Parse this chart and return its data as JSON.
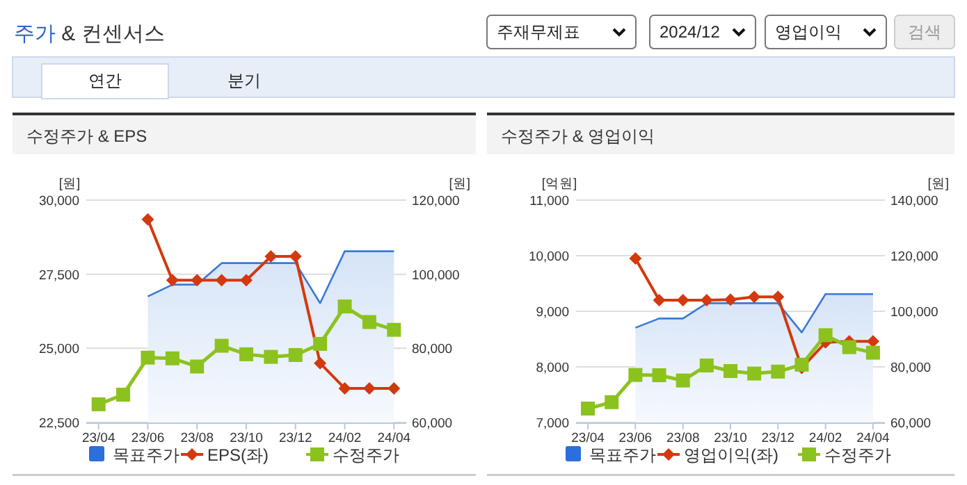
{
  "chart_data": [
    {
      "type": "other",
      "title": "주가 & 컨센서스",
      "annotations": [
        "주재무제표",
        "2024/12",
        "영업이익",
        "검색",
        "연간",
        "분기"
      ]
    },
    {
      "type": "line",
      "title": "수정주가 & EPS",
      "ylabel": "[원]",
      "y2label": "[원]",
      "categories": [
        "23/04",
        null,
        "23/06",
        null,
        "23/08",
        null,
        "23/10",
        null,
        "23/12",
        null,
        "24/02",
        null,
        "24/04"
      ],
      "ylim": [
        22500,
        30000
      ],
      "yticks": [
        {
          "value": 22500,
          "label": "22,500"
        },
        {
          "value": 25000,
          "label": "25,000"
        },
        {
          "value": 27500,
          "label": "27,500"
        },
        {
          "value": 30000,
          "label": "30,000"
        }
      ],
      "y2lim": [
        60000,
        120000
      ],
      "y2ticks": [
        {
          "value": 60000,
          "label": "60,000"
        },
        {
          "value": 80000,
          "label": "80,000"
        },
        {
          "value": 100000,
          "label": "100,000"
        },
        {
          "value": 120000,
          "label": "120,000"
        }
      ],
      "grid": "y",
      "legend": "bottom",
      "series": [
        {
          "name": "목표주가",
          "type": "area",
          "axis": "y2",
          "color": "#3a78d8",
          "values": [
            null,
            null,
            94000,
            97200,
            97200,
            103000,
            103000,
            103000,
            103000,
            92200,
            106200,
            106200,
            106200
          ]
        },
        {
          "name": "EPS(좌)",
          "color": "#d4380d",
          "marker": "diamond",
          "values": [
            null,
            null,
            29350,
            27300,
            27300,
            27300,
            27300,
            28100,
            28100,
            24500,
            23650,
            23650,
            23650
          ]
        },
        {
          "name": "수정주가",
          "axis": "y2",
          "color": "#8cc21e",
          "marker": "square",
          "values": [
            64900,
            67500,
            77500,
            77300,
            75100,
            80700,
            78400,
            77700,
            78200,
            81200,
            91300,
            87100,
            85000
          ]
        }
      ]
    },
    {
      "type": "line",
      "title": "수정주가 & 영업이익",
      "ylabel": "[억원]",
      "y2label": "[원]",
      "categories": [
        "23/04",
        null,
        "23/06",
        null,
        "23/08",
        null,
        "23/10",
        null,
        "23/12",
        null,
        "24/02",
        null,
        "24/04"
      ],
      "ylim": [
        7000,
        11000
      ],
      "yticks": [
        {
          "value": 7000,
          "label": "7,000"
        },
        {
          "value": 8000,
          "label": "8,000"
        },
        {
          "value": 9000,
          "label": "9,000"
        },
        {
          "value": 10000,
          "label": "10,000"
        },
        {
          "value": 11000,
          "label": "11,000"
        }
      ],
      "y2lim": [
        60000,
        140000
      ],
      "y2ticks": [
        {
          "value": 60000,
          "label": "60,000"
        },
        {
          "value": 80000,
          "label": "80,000"
        },
        {
          "value": 100000,
          "label": "100,000"
        },
        {
          "value": 120000,
          "label": "120,000"
        },
        {
          "value": 140000,
          "label": "140,000"
        }
      ],
      "grid": "y",
      "legend": "bottom",
      "series": [
        {
          "name": "목표주가",
          "type": "area",
          "axis": "y2",
          "color": "#3a78d8",
          "values": [
            null,
            null,
            94100,
            97400,
            97400,
            102900,
            102900,
            102900,
            102900,
            92400,
            106200,
            106200,
            106200
          ]
        },
        {
          "name": "영업이익(좌)",
          "color": "#d4380d",
          "marker": "diamond",
          "values": [
            null,
            null,
            9950,
            9200,
            9200,
            9200,
            9210,
            9260,
            9260,
            7980,
            8440,
            8460,
            8460
          ]
        },
        {
          "name": "수정주가",
          "axis": "y2",
          "color": "#8cc21e",
          "marker": "square",
          "values": [
            65000,
            67300,
            77100,
            77000,
            75100,
            80500,
            78500,
            77600,
            78300,
            80800,
            91400,
            87100,
            85100
          ]
        }
      ]
    }
  ]
}
